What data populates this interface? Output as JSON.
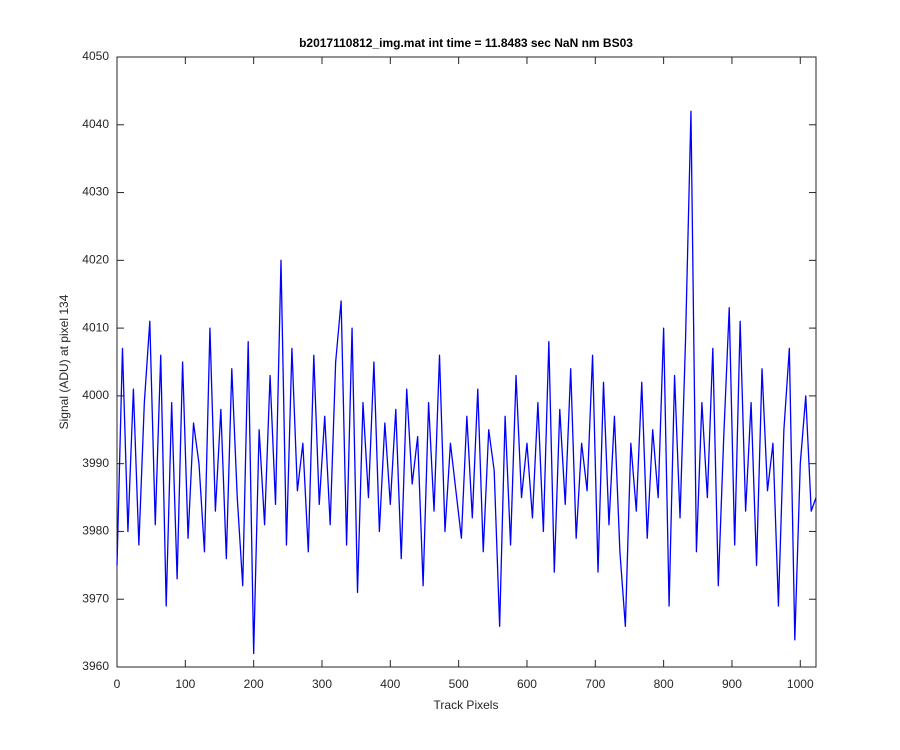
{
  "chart_data": {
    "type": "line",
    "title": "b2017110812_img.mat int time = 11.8483 sec  NaN nm BS03",
    "x_label": "Track Pixels",
    "y_label": "Signal (ADU) at pixel 134",
    "xlim": [
      0,
      1023
    ],
    "ylim": [
      3960,
      4050
    ],
    "xticks": [
      0,
      100,
      200,
      300,
      400,
      500,
      600,
      700,
      800,
      900,
      1000
    ],
    "yticks": [
      3960,
      3970,
      3980,
      3990,
      4000,
      4010,
      4020,
      4030,
      4040,
      4050
    ],
    "grid": false,
    "series": [
      {
        "color": "#0000ff",
        "x": [
          0,
          8,
          16,
          24,
          32,
          40,
          48,
          56,
          64,
          72,
          80,
          88,
          96,
          104,
          112,
          120,
          128,
          136,
          144,
          152,
          160,
          168,
          176,
          184,
          192,
          200,
          208,
          216,
          224,
          232,
          240,
          248,
          256,
          264,
          272,
          280,
          288,
          296,
          304,
          312,
          320,
          328,
          336,
          344,
          352,
          360,
          368,
          376,
          384,
          392,
          400,
          408,
          416,
          424,
          432,
          440,
          448,
          456,
          464,
          472,
          480,
          488,
          496,
          504,
          512,
          520,
          528,
          536,
          544,
          552,
          560,
          568,
          576,
          584,
          592,
          600,
          608,
          616,
          624,
          632,
          640,
          648,
          656,
          664,
          672,
          680,
          688,
          696,
          704,
          712,
          720,
          728,
          736,
          744,
          752,
          760,
          768,
          776,
          784,
          792,
          800,
          808,
          816,
          824,
          832,
          840,
          848,
          856,
          864,
          872,
          880,
          888,
          896,
          904,
          912,
          920,
          928,
          936,
          944,
          952,
          960,
          968,
          976,
          984,
          992,
          1000,
          1008,
          1016,
          1023
        ],
        "values": [
          3975,
          4007,
          3980,
          4001,
          3978,
          3999,
          4011,
          3981,
          4006,
          3969,
          3999,
          3973,
          4005,
          3979,
          3996,
          3990,
          3977,
          4010,
          3983,
          3998,
          3976,
          4004,
          3985,
          3972,
          4008,
          3962,
          3995,
          3981,
          4003,
          3984,
          4020,
          3978,
          4007,
          3986,
          3993,
          3977,
          4006,
          3984,
          3997,
          3981,
          4005,
          4014,
          3978,
          4010,
          3971,
          3999,
          3985,
          4005,
          3980,
          3996,
          3984,
          3998,
          3976,
          4001,
          3987,
          3994,
          3972,
          3999,
          3983,
          4006,
          3980,
          3993,
          3986,
          3979,
          3997,
          3982,
          4001,
          3977,
          3995,
          3989,
          3966,
          3997,
          3978,
          4003,
          3985,
          3993,
          3982,
          3999,
          3980,
          4008,
          3974,
          3998,
          3984,
          4004,
          3979,
          3993,
          3986,
          4006,
          3974,
          4002,
          3981,
          3997,
          3977,
          3966,
          3993,
          3983,
          4002,
          3979,
          3995,
          3985,
          4010,
          3969,
          4003,
          3982,
          4008,
          4042,
          3977,
          3999,
          3985,
          4007,
          3972,
          3994,
          4013,
          3978,
          4011,
          3983,
          3999,
          3975,
          4004,
          3986,
          3993,
          3969,
          3995,
          4007,
          3964,
          3990,
          4000,
          3983,
          3985
        ]
      }
    ]
  }
}
